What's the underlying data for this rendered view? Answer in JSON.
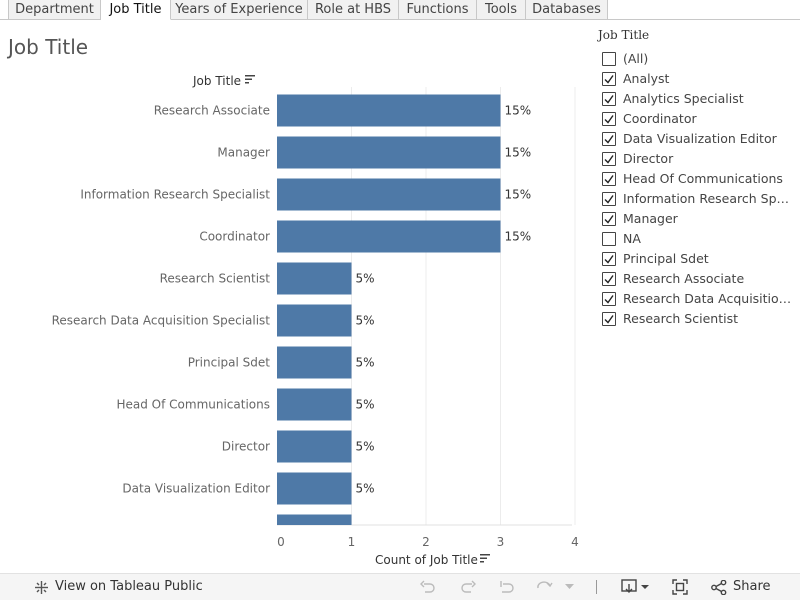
{
  "tabs": [
    {
      "label": "Department",
      "active": false
    },
    {
      "label": "Job Title",
      "active": true
    },
    {
      "label": "Years of Experience",
      "active": false
    },
    {
      "label": "Role at HBS",
      "active": false
    },
    {
      "label": "Functions",
      "active": false
    },
    {
      "label": "Tools",
      "active": false
    },
    {
      "label": "Databases",
      "active": false
    }
  ],
  "sheet_title": "Job Title",
  "chart_data": {
    "type": "bar",
    "orientation": "horizontal",
    "row_header": "Job Title",
    "xlabel": "Count of Job Title",
    "xlim": [
      0,
      4
    ],
    "xticks": [
      "0",
      "1",
      "2",
      "3",
      "4"
    ],
    "grid": true,
    "bar_color": "#4e79a7",
    "categories": [
      "Research Associate",
      "Manager",
      "Information Research Specialist",
      "Coordinator",
      "Research Scientist",
      "Research Data Acquisition Specialist",
      "Principal Sdet",
      "Head Of Communications",
      "Director",
      "Data Visualization Editor",
      ""
    ],
    "values": [
      3,
      3,
      3,
      3,
      1,
      1,
      1,
      1,
      1,
      1,
      1
    ],
    "labels": [
      "15%",
      "15%",
      "15%",
      "15%",
      "5%",
      "5%",
      "5%",
      "5%",
      "5%",
      "5%",
      ""
    ]
  },
  "filter": {
    "title": "Job Title",
    "items": [
      {
        "label": "(All)",
        "checked": false
      },
      {
        "label": "Analyst",
        "checked": true
      },
      {
        "label": "Analytics Specialist",
        "checked": true
      },
      {
        "label": "Coordinator",
        "checked": true
      },
      {
        "label": "Data Visualization Editor",
        "checked": true
      },
      {
        "label": "Director",
        "checked": true
      },
      {
        "label": "Head Of Communications",
        "checked": true
      },
      {
        "label": "Information Research Specia...",
        "checked": true
      },
      {
        "label": "Manager",
        "checked": true
      },
      {
        "label": "NA",
        "checked": false
      },
      {
        "label": "Principal Sdet",
        "checked": true
      },
      {
        "label": "Research Associate",
        "checked": true
      },
      {
        "label": "Research Data Acquisition S...",
        "checked": true
      },
      {
        "label": "Research Scientist",
        "checked": true
      }
    ]
  },
  "toolbar": {
    "view_public": "View on Tableau Public",
    "share": "Share",
    "icons": [
      "tableau-logo-icon",
      "undo-icon",
      "redo-icon",
      "revert-icon",
      "refresh-icon",
      "pause-dropdown-icon",
      "download-icon",
      "fullscreen-icon",
      "share-icon"
    ]
  }
}
